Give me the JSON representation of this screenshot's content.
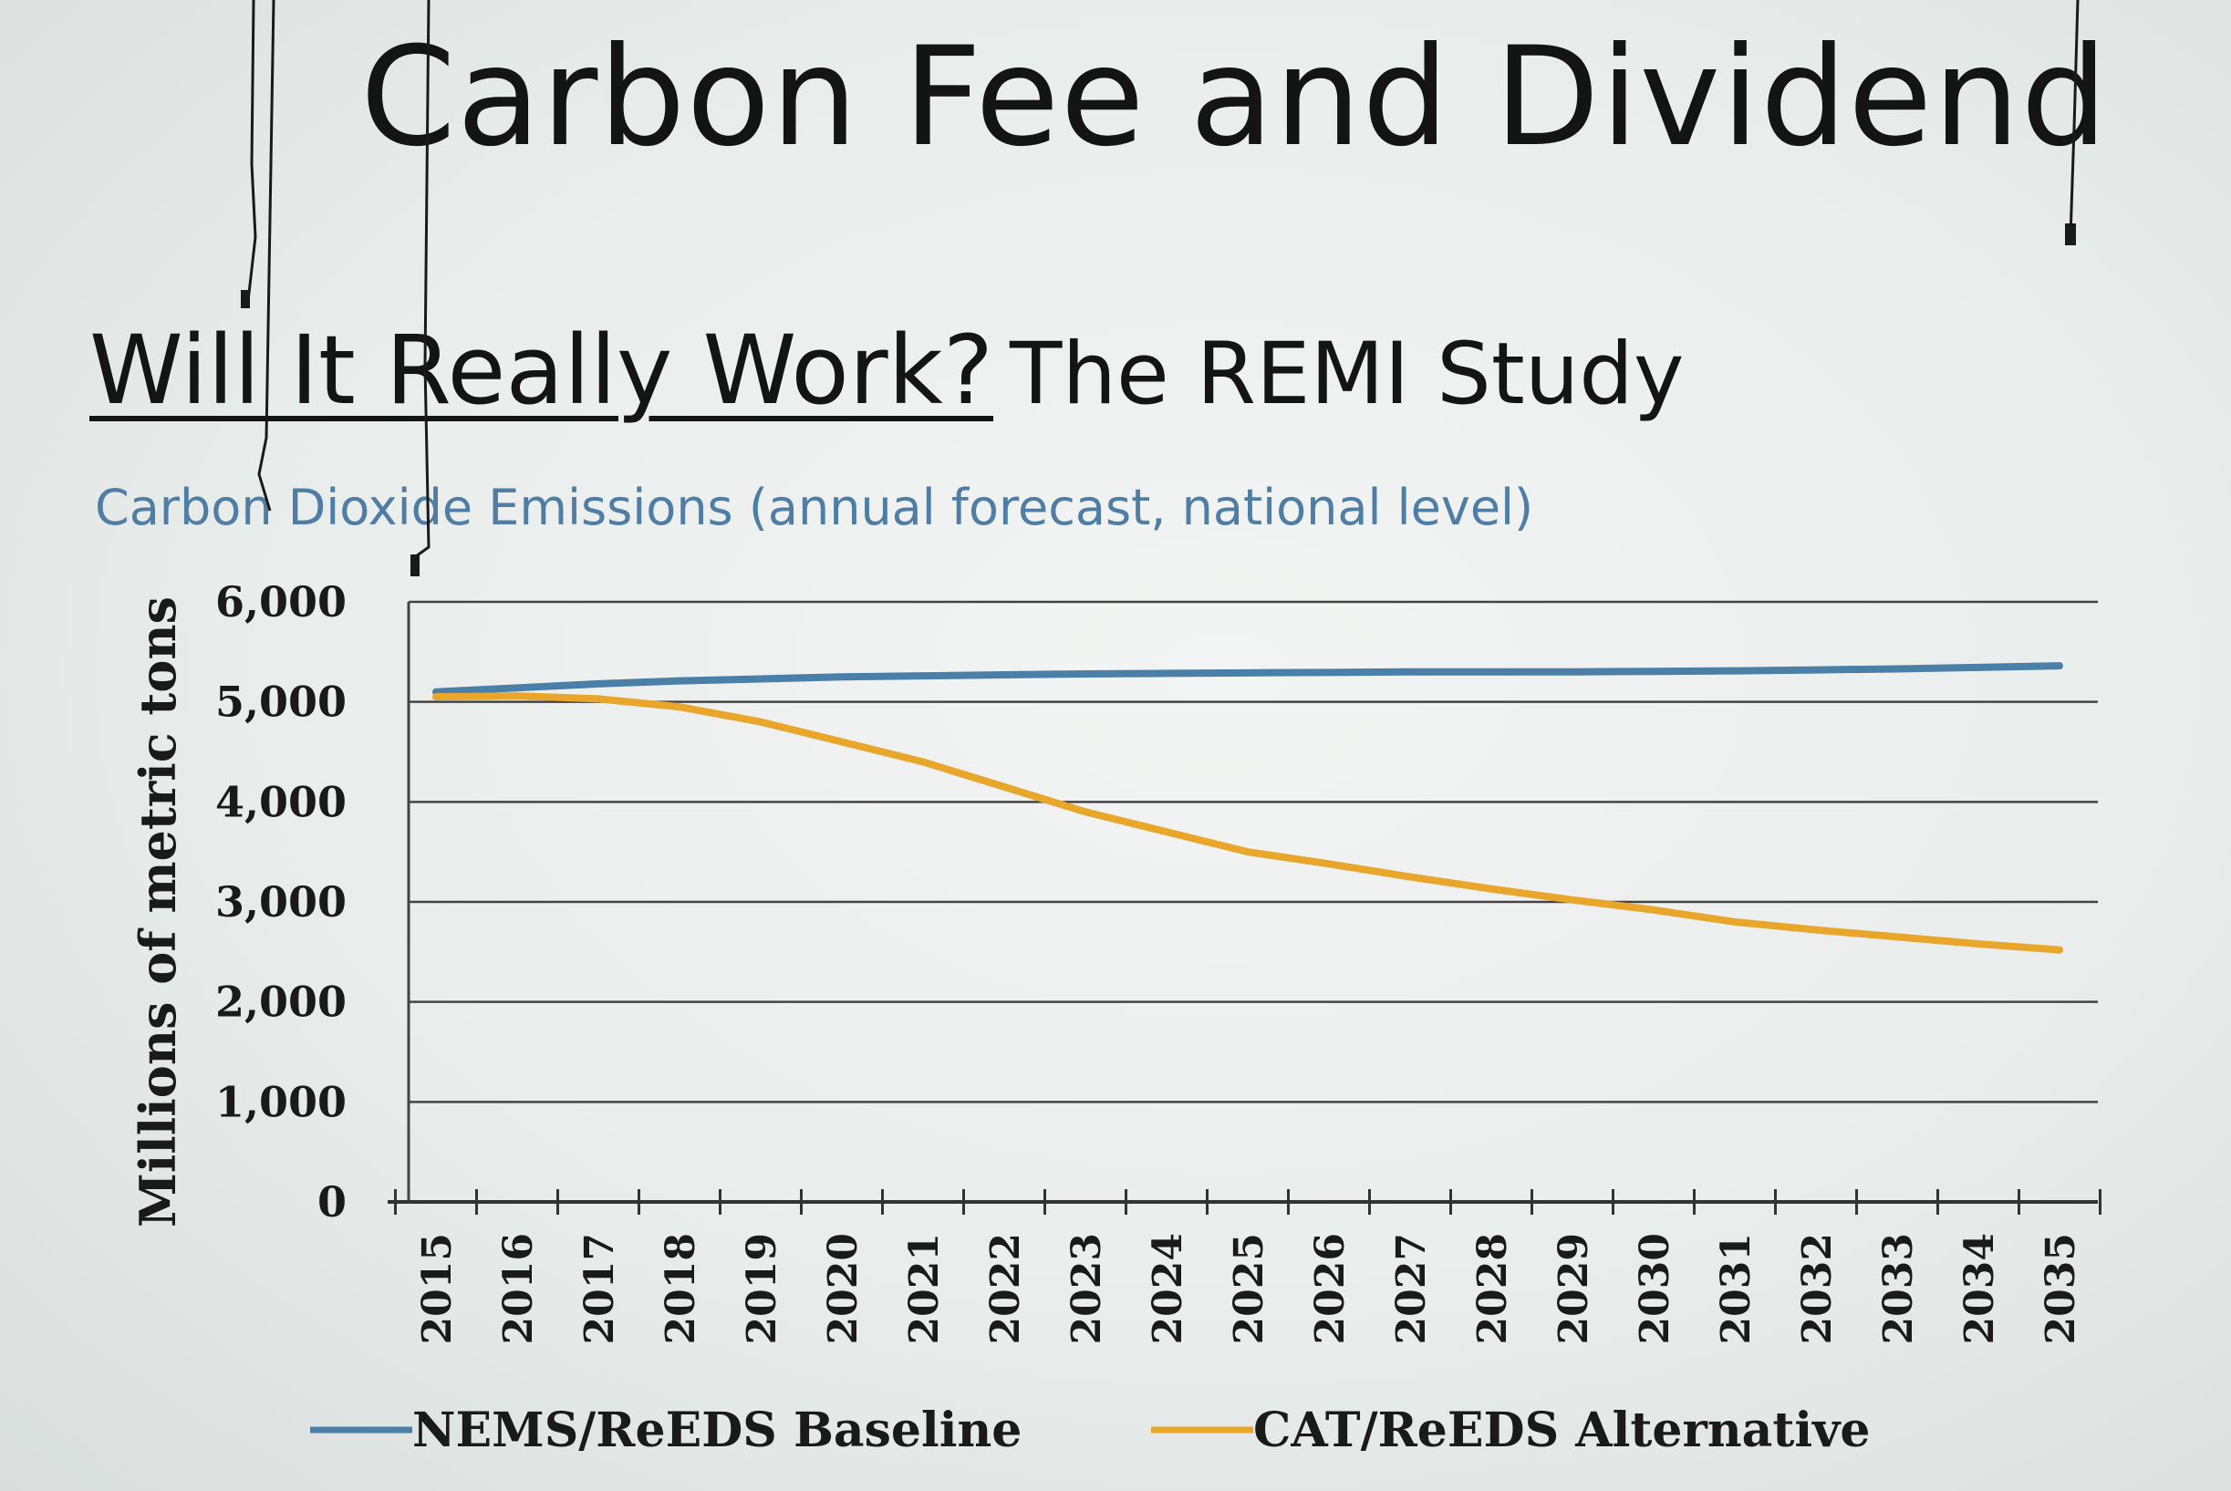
{
  "slide": {
    "title": "Carbon Fee and Dividend",
    "subtitle_main": "Will It Really Work?",
    "subtitle_rest": "The REMI Study"
  },
  "chart_data": {
    "type": "line",
    "title": "Carbon Dioxide Emissions (annual forecast, national level)",
    "xlabel": "",
    "ylabel": "Millions of metric tons",
    "ylim": [
      0,
      6000
    ],
    "yticks": [
      "0",
      "1,000",
      "2,000",
      "3,000",
      "4,000",
      "5,000",
      "6,000"
    ],
    "grid": true,
    "legend_position": "bottom",
    "categories": [
      "2015",
      "2016",
      "2017",
      "2018",
      "2019",
      "2020",
      "2021",
      "2022",
      "2023",
      "2024",
      "2025",
      "2026",
      "2027",
      "2028",
      "2029",
      "2030",
      "2031",
      "2032",
      "2033",
      "2034",
      "2035"
    ],
    "series": [
      {
        "name": "NEMS/ReEDS Baseline",
        "color": "#4a7fa8",
        "values": [
          5100,
          5140,
          5180,
          5210,
          5230,
          5250,
          5260,
          5270,
          5280,
          5285,
          5290,
          5295,
          5300,
          5300,
          5300,
          5305,
          5310,
          5320,
          5330,
          5345,
          5360
        ]
      },
      {
        "name": "CAT/ReEDS Alternative",
        "color": "#e8a62a",
        "values": [
          5050,
          5060,
          5030,
          4950,
          4800,
          4600,
          4400,
          4150,
          3900,
          3700,
          3500,
          3380,
          3250,
          3130,
          3020,
          2920,
          2800,
          2720,
          2650,
          2580,
          2520
        ]
      }
    ]
  }
}
